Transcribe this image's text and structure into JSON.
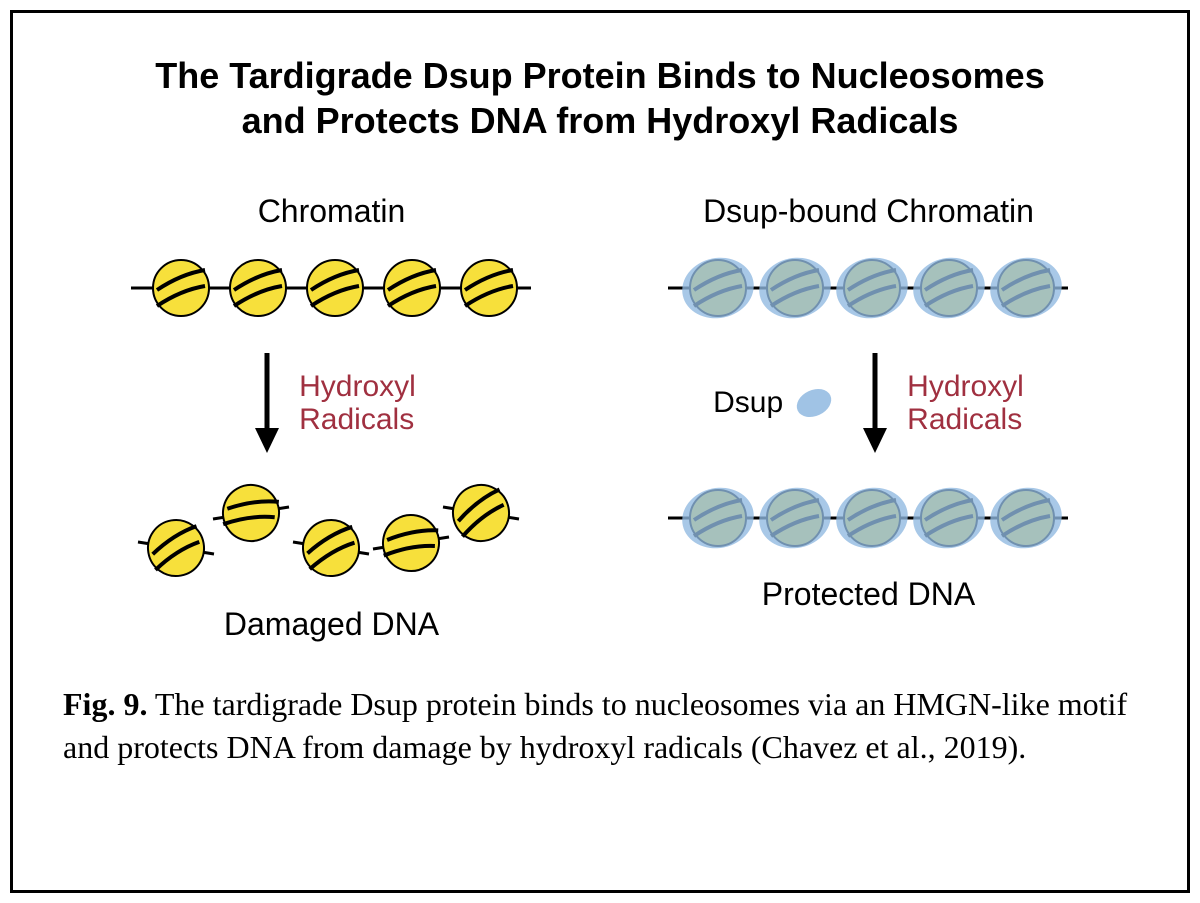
{
  "title_line1": "The Tardigrade Dsup Protein Binds to Nucleosomes",
  "title_line2": "and Protects DNA from Hydroxyl Radicals",
  "left": {
    "header": "Chromatin",
    "radicals_l1": "Hydroxyl",
    "radicals_l2": "Radicals",
    "result": "Damaged DNA"
  },
  "right": {
    "header": "Dsup-bound Chromatin",
    "dsup_label": "Dsup",
    "radicals_l1": "Hydroxyl",
    "radicals_l2": "Radicals",
    "result": "Protected DNA"
  },
  "caption": {
    "fig_label": "Fig. 9.",
    "text": "  The tardigrade Dsup protein binds to nucleosomes via an HMGN-like motif and protects DNA from damage by hydroxyl radicals (Chavez et al., 2019)."
  },
  "colors": {
    "nucleosome_fill": "#f7e03b",
    "nucleosome_stroke": "#000000",
    "dna_stroke": "#000000",
    "dsup_fill": "#8fb8e0",
    "dsup_opacity": 0.78,
    "radicals_text": "#a03040",
    "text": "#000000",
    "border": "#000000",
    "bg": "#ffffff"
  },
  "diagram": {
    "nucleosome_radius": 28,
    "nucleosome_spacing": 70,
    "dna_width": 3,
    "dsup_rx": 36,
    "dsup_ry": 30,
    "arrow_length": 90,
    "arrow_width": 4
  }
}
